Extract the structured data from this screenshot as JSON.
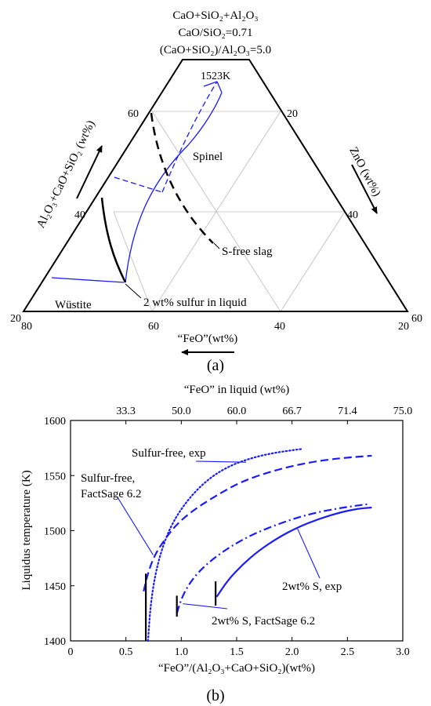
{
  "colors": {
    "blue": "#1a1aff",
    "black": "#000000",
    "grid": "#bbbbbb"
  },
  "panel_a": {
    "header": [
      "CaO+SiO₂+Al₂O₃",
      "CaO/SiO₂=0.71",
      "(CaO+SiO₂)/Al₂O₃=5.0"
    ],
    "left_axis_label": "Al₂O₃+CaO+SiO₂ (wt%)",
    "right_axis_label": "ZnO (wt%)",
    "bottom_axis_label": "“FeO”(wt%)",
    "left_ticks": [
      "60",
      "40",
      "20"
    ],
    "right_ticks": [
      "20",
      "40",
      "60"
    ],
    "bottom_ticks": [
      "80",
      "60",
      "40",
      "20"
    ],
    "region_labels": {
      "temperature": "1523K",
      "spinel": "Spinel",
      "sfree": "S-free slag",
      "wustite": "Wüstite",
      "sulfur": "2 wt% sulfur in liquid"
    },
    "caption": "(a)"
  },
  "chart_data": {
    "type": "line",
    "caption": "(b)",
    "xlabel": "“FeO”/(Al₂O₃+CaO+SiO₂)(wt%)",
    "ylabel": "Liquidus temperature (K)",
    "top_xlabel": "“FeO” in liquid (wt%)",
    "xlim": [
      0,
      3.0
    ],
    "ylim": [
      1400,
      1600
    ],
    "x_ticks": [
      0,
      0.5,
      1.0,
      1.5,
      2.0,
      2.5,
      3.0
    ],
    "x_tick_labels": [
      "0",
      "0.5",
      "1.0",
      "1.5",
      "2.0",
      "2.5",
      "3.0"
    ],
    "y_ticks": [
      1400,
      1450,
      1500,
      1550,
      1600
    ],
    "y_tick_labels": [
      "1400",
      "1450",
      "1500",
      "1550",
      "1600"
    ],
    "top_ticks_x": [
      0.5,
      1.0,
      1.5,
      2.0,
      2.5,
      3.0
    ],
    "top_tick_labels": [
      "33.3",
      "50.0",
      "60.0",
      "66.7",
      "71.4",
      "75.0"
    ],
    "series": [
      {
        "name": "Sulfur-free, exp",
        "style": "dotted",
        "x": [
          0.7,
          0.72,
          0.76,
          0.82,
          0.9,
          1.0,
          1.12,
          1.26,
          1.42,
          1.6,
          1.8,
          2.0,
          2.08
        ],
        "y": [
          1400,
          1430,
          1458,
          1482,
          1503,
          1520,
          1535,
          1548,
          1558,
          1565,
          1570,
          1573,
          1574
        ]
      },
      {
        "name": "Sulfur-free, FactSage 6.2",
        "style": "dashed",
        "x": [
          0.66,
          0.7,
          0.76,
          0.85,
          0.95,
          1.1,
          1.3,
          1.55,
          1.85,
          2.15,
          2.45,
          2.72
        ],
        "y": [
          1445,
          1462,
          1478,
          1492,
          1505,
          1518,
          1531,
          1545,
          1555,
          1562,
          1566,
          1568
        ]
      },
      {
        "name": "2wt% S, exp",
        "style": "solid",
        "x": [
          1.32,
          1.42,
          1.55,
          1.7,
          1.88,
          2.05,
          2.25,
          2.45,
          2.6,
          2.72
        ],
        "y": [
          1440,
          1455,
          1469,
          1482,
          1494,
          1503,
          1511,
          1517,
          1520,
          1521
        ]
      },
      {
        "name": "2wt% S, FactSage 6.2",
        "style": "dashdot",
        "x": [
          0.96,
          1.0,
          1.06,
          1.15,
          1.28,
          1.45,
          1.65,
          1.9,
          2.15,
          2.4,
          2.6,
          2.68
        ],
        "y": [
          1425,
          1438,
          1450,
          1462,
          1474,
          1486,
          1497,
          1507,
          1515,
          1520,
          1523,
          1524
        ]
      }
    ],
    "markers": [
      {
        "x": 0.68,
        "y1": 1400,
        "y2": 1461
      },
      {
        "x": 0.96,
        "y1": 1422,
        "y2": 1441
      },
      {
        "x": 1.31,
        "y1": 1432,
        "y2": 1454
      }
    ],
    "annotations": [
      {
        "text": "Sulfur-free, exp",
        "series": 0
      },
      {
        "text_lines": [
          "Sulfur-free,",
          "FactSage 6.2"
        ],
        "series": 1
      },
      {
        "text": "2wt% S, exp",
        "series": 2
      },
      {
        "text": "2wt% S, FactSage 6.2",
        "series": 3
      }
    ]
  }
}
